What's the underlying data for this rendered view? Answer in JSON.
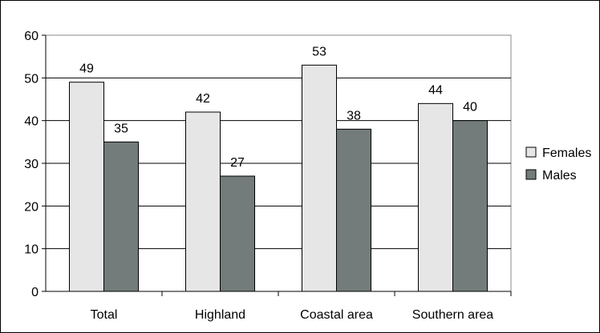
{
  "chart_data": {
    "type": "bar",
    "title": "",
    "xlabel": "",
    "ylabel": "",
    "categories": [
      "Total",
      "Highland",
      "Coastal area",
      "Southern area"
    ],
    "series": [
      {
        "name": "Females",
        "values": [
          49,
          42,
          53,
          44
        ],
        "color": "#e6e6e6"
      },
      {
        "name": "Males",
        "values": [
          35,
          27,
          38,
          40
        ],
        "color": "#737b7b"
      }
    ],
    "ylim": [
      0,
      60
    ],
    "yticks": [
      "0",
      "10",
      "20",
      "30",
      "40",
      "50",
      "60"
    ],
    "grid": true,
    "legend_position": "right",
    "data_labels": true
  }
}
